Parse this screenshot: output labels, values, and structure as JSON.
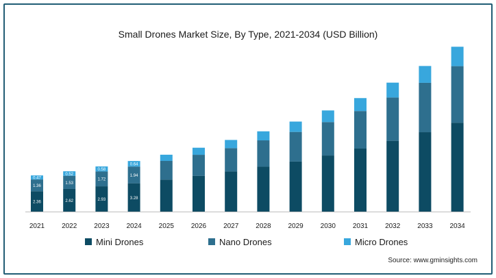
{
  "chart_data": {
    "type": "bar",
    "stacked": true,
    "title": "Small Drones Market Size, By Type, 2021-2034 (USD Billion)",
    "categories": [
      "2021",
      "2022",
      "2023",
      "2024",
      "2025",
      "2026",
      "2027",
      "2028",
      "2029",
      "2030",
      "2031",
      "2032",
      "2033",
      "2034"
    ],
    "series": [
      {
        "name": "Mini Drones",
        "color": "#0d4b63",
        "values": [
          2.36,
          2.62,
          2.93,
          3.28,
          3.7,
          4.15,
          4.65,
          5.2,
          5.8,
          6.5,
          7.3,
          8.2,
          9.2,
          10.3
        ]
      },
      {
        "name": "Nano Drones",
        "color": "#2e6f8e",
        "values": [
          1.36,
          1.53,
          1.72,
          1.94,
          2.17,
          2.43,
          2.7,
          3.05,
          3.43,
          3.87,
          4.35,
          5.02,
          5.72,
          6.55
        ]
      },
      {
        "name": "Micro Drones",
        "color": "#38a7dd",
        "values": [
          0.47,
          0.52,
          0.58,
          0.64,
          0.72,
          0.82,
          0.95,
          1.05,
          1.2,
          1.35,
          1.5,
          1.72,
          1.95,
          2.25
        ]
      }
    ],
    "data_labels_shown_for": [
      "2021",
      "2022",
      "2023",
      "2024"
    ],
    "data_labels": {
      "2021": [
        "2.36",
        "1.36",
        "0.47"
      ],
      "2022": [
        "2.62",
        "1.53",
        "0.52"
      ],
      "2023": [
        "2.93",
        "1.72",
        "0.58"
      ],
      "2024": [
        "3.28",
        "1.94",
        "0.64"
      ]
    },
    "ylim": [
      0,
      19.2
    ],
    "grid": false,
    "legend_position": "bottom"
  },
  "source_text": "Source: www.gminsights.com"
}
